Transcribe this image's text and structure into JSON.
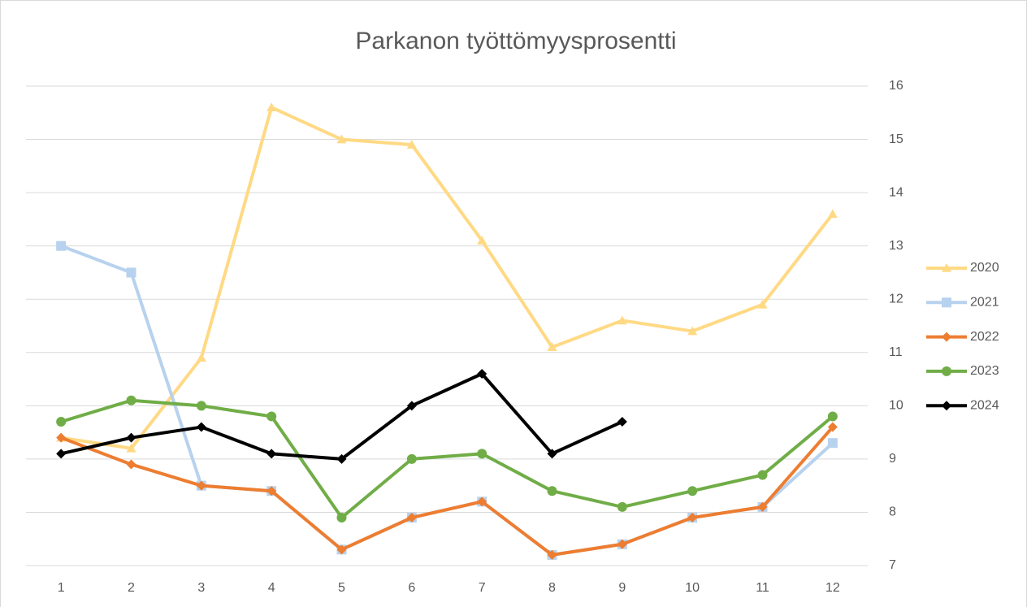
{
  "chart_data": {
    "type": "line",
    "title": "Parkanon työttömyysprosentti",
    "categories": [
      "1",
      "2",
      "3",
      "4",
      "5",
      "6",
      "7",
      "8",
      "9",
      "10",
      "11",
      "12"
    ],
    "series": [
      {
        "name": "2020",
        "color": "#ffd984",
        "marker": "triangle",
        "values": [
          9.4,
          9.2,
          10.9,
          15.6,
          15.0,
          14.9,
          13.1,
          11.1,
          11.6,
          11.4,
          11.9,
          13.6
        ]
      },
      {
        "name": "2021",
        "color": "#b7d2ee",
        "marker": "square",
        "values": [
          13.0,
          12.5,
          8.5,
          8.4,
          7.3,
          7.9,
          8.2,
          7.2,
          7.4,
          7.9,
          8.1,
          9.3
        ]
      },
      {
        "name": "2022",
        "color": "#ed7d31",
        "marker": "diamond",
        "values": [
          9.4,
          8.9,
          8.5,
          8.4,
          7.3,
          7.9,
          8.2,
          7.2,
          7.4,
          7.9,
          8.1,
          9.6
        ]
      },
      {
        "name": "2023",
        "color": "#70ad47",
        "marker": "circle",
        "values": [
          9.7,
          10.1,
          10.0,
          9.8,
          7.9,
          9.0,
          9.1,
          8.4,
          8.1,
          8.4,
          8.7,
          9.8
        ]
      },
      {
        "name": "2024",
        "color": "#000000",
        "marker": "diamond",
        "values": [
          9.1,
          9.4,
          9.6,
          9.1,
          9.0,
          10.0,
          10.6,
          9.1,
          9.7,
          null,
          null,
          null
        ]
      }
    ],
    "ylim": [
      7,
      16
    ],
    "yticks": [
      7,
      8,
      9,
      10,
      11,
      12,
      13,
      14,
      15,
      16
    ],
    "grid": true,
    "y_axis_side": "right",
    "legend": "right"
  }
}
